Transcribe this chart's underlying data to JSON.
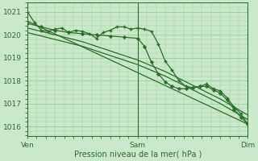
{
  "bg_color": "#cce8cc",
  "grid_color": "#99cc99",
  "line_color": "#2a6e2a",
  "xlabel": "Pression niveau de la mer( hPa )",
  "xlabel_fontsize": 7,
  "tick_fontsize": 6.5,
  "ylim": [
    1015.6,
    1021.4
  ],
  "yticks": [
    1016,
    1017,
    1018,
    1019,
    1020,
    1021
  ],
  "xlim": [
    0,
    96
  ],
  "x_ven": 0,
  "x_sam": 48,
  "x_dim": 96,
  "series": [
    {
      "x": [
        0,
        96
      ],
      "y": [
        1020.6,
        1016.1
      ],
      "marker": null,
      "lw": 0.9,
      "linestyle": "-"
    },
    {
      "x": [
        0,
        12,
        24,
        36,
        48,
        60,
        72,
        84,
        96
      ],
      "y": [
        1020.3,
        1020.0,
        1019.7,
        1019.3,
        1018.9,
        1018.4,
        1017.8,
        1017.2,
        1016.5
      ],
      "marker": null,
      "lw": 0.9,
      "linestyle": "-"
    },
    {
      "x": [
        0,
        12,
        24,
        36,
        48,
        60,
        72,
        84,
        96
      ],
      "y": [
        1020.1,
        1019.8,
        1019.5,
        1019.1,
        1018.7,
        1018.2,
        1017.6,
        1017.0,
        1016.3
      ],
      "marker": null,
      "lw": 0.9,
      "linestyle": "-"
    },
    {
      "x": [
        0,
        3,
        6,
        9,
        12,
        15,
        18,
        21,
        24,
        27,
        30,
        33,
        36,
        39,
        42,
        45,
        48,
        51,
        54,
        57,
        60,
        63,
        66,
        69,
        72,
        75,
        78,
        81,
        84,
        87,
        90,
        93,
        96
      ],
      "y": [
        1021.0,
        1020.55,
        1020.2,
        1020.15,
        1020.25,
        1020.3,
        1020.1,
        1020.2,
        1020.15,
        1020.05,
        1019.85,
        1020.1,
        1020.2,
        1020.35,
        1020.35,
        1020.25,
        1020.3,
        1020.25,
        1020.15,
        1019.6,
        1018.85,
        1018.45,
        1018.0,
        1017.75,
        1017.7,
        1017.75,
        1017.85,
        1017.65,
        1017.55,
        1017.25,
        1016.85,
        1016.55,
        1016.1
      ],
      "marker": "+",
      "markersize": 3.5,
      "markeredgewidth": 1.0,
      "lw": 0.9,
      "linestyle": "-"
    },
    {
      "x": [
        0,
        6,
        12,
        18,
        24,
        30,
        36,
        42,
        48,
        51,
        54,
        57,
        60,
        63,
        66,
        69,
        72,
        75,
        78,
        81,
        84,
        87,
        90,
        93,
        96
      ],
      "y": [
        1020.5,
        1020.35,
        1020.2,
        1020.1,
        1020.05,
        1020.0,
        1019.95,
        1019.9,
        1019.85,
        1019.5,
        1018.8,
        1018.3,
        1017.95,
        1017.75,
        1017.65,
        1017.65,
        1017.7,
        1017.75,
        1017.75,
        1017.6,
        1017.45,
        1017.15,
        1016.75,
        1016.4,
        1016.1
      ],
      "marker": "D",
      "markersize": 2.2,
      "markeredgewidth": 0.5,
      "lw": 0.9,
      "linestyle": "-"
    }
  ]
}
